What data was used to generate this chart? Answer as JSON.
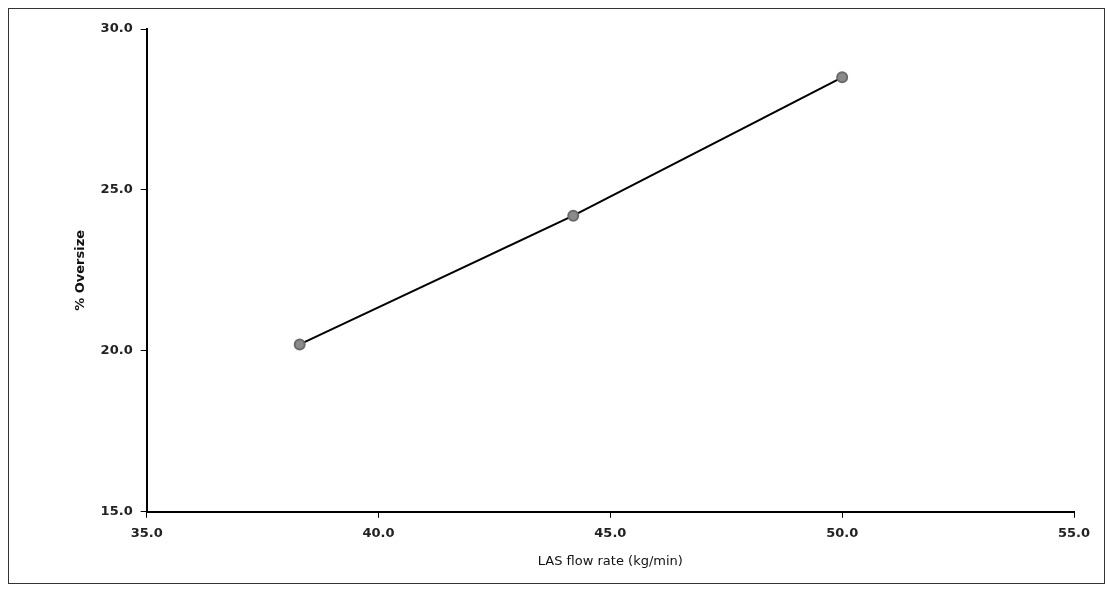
{
  "chart_data": {
    "type": "line",
    "xlabel": "LAS flow rate (kg/min)",
    "ylabel": "% Oversize",
    "x": [
      38.3,
      44.2,
      50.0
    ],
    "series": [
      {
        "color": "#000000",
        "values": [
          20.2,
          24.2,
          28.5
        ]
      }
    ],
    "xlim": [
      35,
      55
    ],
    "xticks": [
      {
        "value": 35,
        "label": "35.0"
      },
      {
        "value": 40,
        "label": "40.0"
      },
      {
        "value": 45,
        "label": "45.0"
      },
      {
        "value": 50,
        "label": "50.0"
      },
      {
        "value": 55,
        "label": "55.0"
      }
    ],
    "ylim": [
      15,
      30
    ],
    "yticks": [
      {
        "value": 15,
        "label": "15.0"
      },
      {
        "value": 20,
        "label": "20.0"
      },
      {
        "value": 25,
        "label": "25.0"
      },
      {
        "value": 30,
        "label": "30.0"
      }
    ],
    "grid": false,
    "legend": false,
    "marker": "circle",
    "line_style": "solid"
  }
}
